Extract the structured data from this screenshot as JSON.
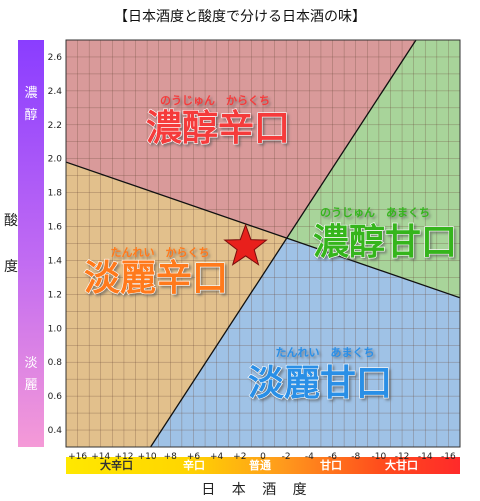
{
  "title": "【日本酒度と酸度で分ける日本酒の味】",
  "y_axis": {
    "title": [
      "酸",
      "度"
    ],
    "bar_top": [
      "濃",
      "醇"
    ],
    "bar_bottom": [
      "淡",
      "麗"
    ]
  },
  "x_axis": {
    "title": "日 本 酒 度",
    "bands": [
      "大辛口",
      "辛口",
      "普通",
      "甘口",
      "大甘口"
    ]
  },
  "zones": [
    {
      "name": "濃醇辛口",
      "reading": "のうじゅん　からくち",
      "color": "#f53b3b"
    },
    {
      "name": "濃醇甘口",
      "reading": "のうじゅん　あまくち",
      "color": "#35b51e"
    },
    {
      "name": "淡麗辛口",
      "reading": "たんれい　からくち",
      "color": "#ff7a1a"
    },
    {
      "name": "淡麗甘口",
      "reading": "たんれい　あまくち",
      "color": "#2a8fe6"
    }
  ],
  "chart_data": {
    "type": "region-map",
    "x_ticks": [
      16,
      14,
      12,
      10,
      8,
      6,
      4,
      2,
      0,
      -2,
      -4,
      -6,
      -8,
      -10,
      -12,
      -14,
      -16
    ],
    "x_tick_labels": [
      "+16",
      "+14",
      "+12",
      "+10",
      "+8",
      "+6",
      "+4",
      "+2",
      "0",
      "-2",
      "-4",
      "-6",
      "-8",
      "-10",
      "-12",
      "-14",
      "-16"
    ],
    "y_ticks": [
      0.4,
      0.6,
      0.8,
      1.0,
      1.2,
      1.4,
      1.6,
      1.8,
      2.0,
      2.2,
      2.4,
      2.6
    ],
    "y_tick_labels": [
      "0.4",
      "0.6",
      "0.8",
      "1.0",
      "1.2",
      "1.4",
      "1.6",
      "1.8",
      "2.0",
      "2.2",
      "2.4",
      "2.6"
    ],
    "xlim": [
      17,
      -17
    ],
    "ylim": [
      0.3,
      2.7
    ],
    "x_reversed": true,
    "boundary_lines": [
      {
        "from": [
          17,
          1.98
        ],
        "to": [
          -17,
          1.18
        ]
      },
      {
        "from": [
          9.7,
          0.3
        ],
        "to": [
          -13.2,
          2.7
        ]
      }
    ],
    "regions": [
      {
        "name": "濃醇辛口",
        "fill": "#d99a9a"
      },
      {
        "name": "濃醇甘口",
        "fill": "#a8d49a"
      },
      {
        "name": "淡麗辛口",
        "fill": "#e2c08c"
      },
      {
        "name": "淡麗甘口",
        "fill": "#9fc2e6"
      }
    ],
    "marker": {
      "label": "star",
      "x": 1.5,
      "y": 1.48,
      "color": "#e8201c"
    },
    "grid": true
  }
}
